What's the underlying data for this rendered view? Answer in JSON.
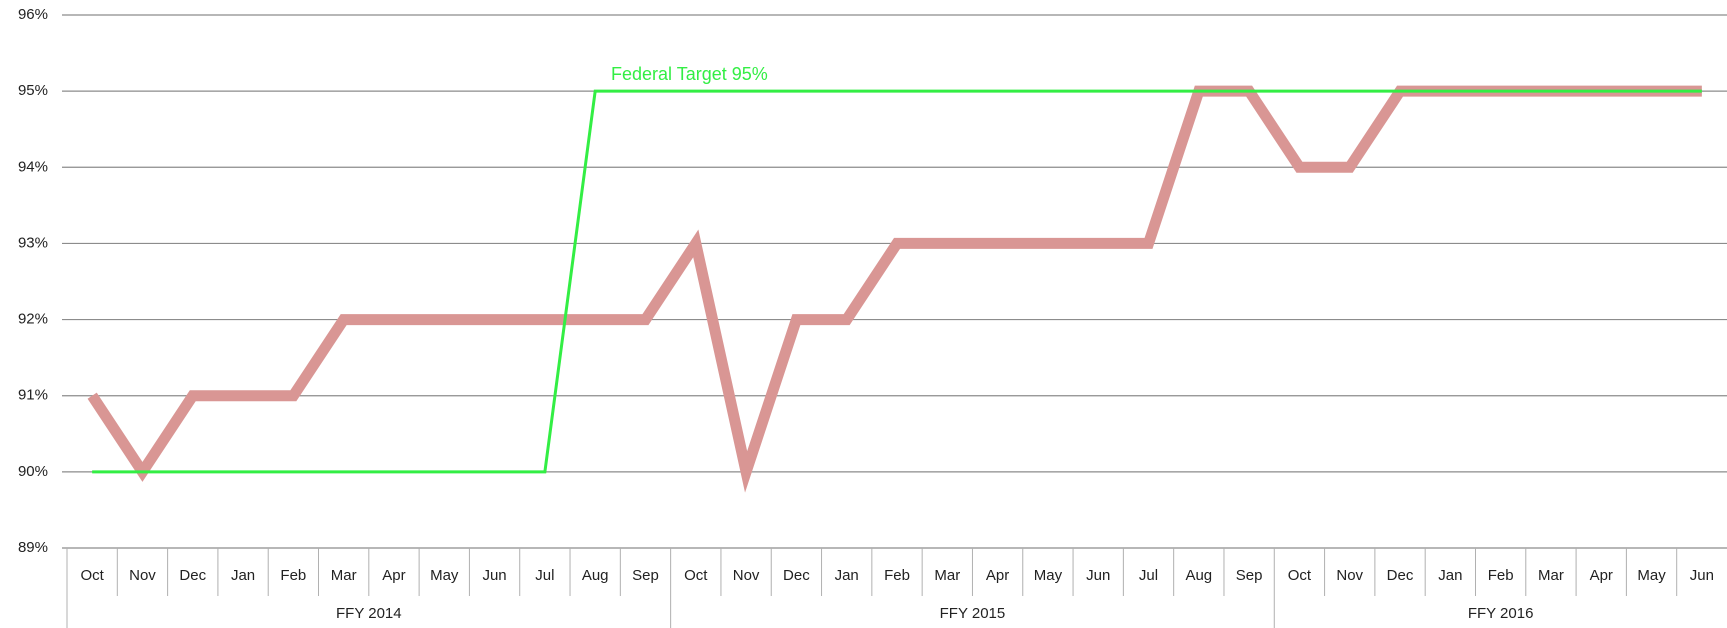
{
  "chart_data": {
    "type": "line",
    "annotation": "Federal Target 95%",
    "category_groups": [
      {
        "label": "FFY 2014",
        "categories": [
          "Oct",
          "Nov",
          "Dec",
          "Jan",
          "Feb",
          "Mar",
          "Apr",
          "May",
          "Jun",
          "Jul",
          "Aug",
          "Sep"
        ]
      },
      {
        "label": "FFY 2015",
        "categories": [
          "Oct",
          "Nov",
          "Dec",
          "Jan",
          "Feb",
          "Mar",
          "Apr",
          "May",
          "Jun",
          "Jul",
          "Aug",
          "Sep"
        ]
      },
      {
        "label": "FFY 2016",
        "categories": [
          "Oct",
          "Nov",
          "Dec",
          "Jan",
          "Feb",
          "Mar",
          "Apr",
          "May",
          "Jun"
        ]
      }
    ],
    "series": [
      {
        "color": "#d99694",
        "values": [
          91,
          90,
          91,
          91,
          91,
          92,
          92,
          92,
          92,
          92,
          92,
          92,
          93,
          90,
          92,
          92,
          93,
          93,
          93,
          93,
          93,
          93,
          95,
          95,
          94,
          94,
          95,
          95,
          95,
          95,
          95,
          95,
          95
        ]
      },
      {
        "color": "#33ee44",
        "values": [
          90,
          90,
          90,
          90,
          90,
          90,
          90,
          90,
          90,
          90,
          95,
          95,
          95,
          95,
          95,
          95,
          95,
          95,
          95,
          95,
          95,
          95,
          95,
          95,
          95,
          95,
          95,
          95,
          95,
          95,
          95,
          95,
          95
        ]
      }
    ],
    "ylim": [
      89,
      96
    ],
    "yticks": [
      {
        "value": 89,
        "label": "89%"
      },
      {
        "value": 90,
        "label": "90%"
      },
      {
        "value": 91,
        "label": "91%"
      },
      {
        "value": 92,
        "label": "92%"
      },
      {
        "value": 93,
        "label": "93%"
      },
      {
        "value": 94,
        "label": "94%"
      },
      {
        "value": 95,
        "label": "95%"
      },
      {
        "value": 96,
        "label": "96%"
      }
    ],
    "grid": true
  }
}
